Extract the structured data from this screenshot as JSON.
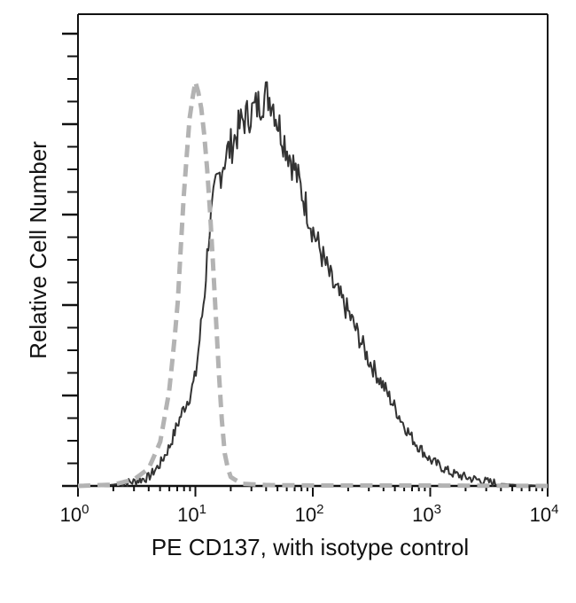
{
  "chart_data": {
    "type": "area",
    "title": "",
    "xlabel": "PE CD137, with isotype control",
    "ylabel": "Relative Cell Number",
    "x_scale": "log",
    "xlim": [
      1,
      10000
    ],
    "ylim": [
      0,
      100
    ],
    "x_ticks": [
      {
        "value": 1,
        "base": "10",
        "exp": "0"
      },
      {
        "value": 10,
        "base": "10",
        "exp": "1"
      },
      {
        "value": 100,
        "base": "10",
        "exp": "2"
      },
      {
        "value": 1000,
        "base": "10",
        "exp": "3"
      },
      {
        "value": 10000,
        "base": "10",
        "exp": "4"
      }
    ],
    "grid": false,
    "series": [
      {
        "style": "solid",
        "color": "#333333",
        "points": [
          [
            1.5,
            0
          ],
          [
            2,
            0.3
          ],
          [
            3,
            1
          ],
          [
            4,
            2
          ],
          [
            5,
            5
          ],
          [
            6,
            9
          ],
          [
            7,
            14
          ],
          [
            8,
            18
          ],
          [
            9,
            21
          ],
          [
            10,
            25
          ],
          [
            11,
            35
          ],
          [
            12,
            45
          ],
          [
            13,
            58
          ],
          [
            15,
            69
          ],
          [
            18,
            76
          ],
          [
            20,
            78
          ],
          [
            25,
            84
          ],
          [
            30,
            86
          ],
          [
            35,
            88
          ],
          [
            40,
            90
          ],
          [
            45,
            89
          ],
          [
            50,
            84
          ],
          [
            60,
            78
          ],
          [
            70,
            73
          ],
          [
            80,
            68
          ],
          [
            100,
            59
          ],
          [
            120,
            53
          ],
          [
            150,
            46
          ],
          [
            200,
            40
          ],
          [
            250,
            34
          ],
          [
            300,
            29
          ],
          [
            400,
            23
          ],
          [
            500,
            18
          ],
          [
            600,
            14
          ],
          [
            700,
            11
          ],
          [
            800,
            9
          ],
          [
            1000,
            6
          ],
          [
            1500,
            3
          ],
          [
            2000,
            2
          ],
          [
            3000,
            1
          ],
          [
            4000,
            0.5
          ],
          [
            5000,
            0.3
          ],
          [
            10000,
            0
          ]
        ]
      },
      {
        "style": "dashed",
        "color": "#b3b3b3",
        "points": [
          [
            1,
            0
          ],
          [
            2,
            0.3
          ],
          [
            3,
            1.5
          ],
          [
            4,
            4
          ],
          [
            5,
            10
          ],
          [
            6,
            22
          ],
          [
            7,
            40
          ],
          [
            8,
            68
          ],
          [
            9,
            86
          ],
          [
            10,
            93
          ],
          [
            11,
            89
          ],
          [
            12,
            80
          ],
          [
            13,
            68
          ],
          [
            14,
            53
          ],
          [
            15,
            38
          ],
          [
            16,
            24
          ],
          [
            17,
            13
          ],
          [
            18,
            6
          ],
          [
            20,
            2
          ],
          [
            25,
            0.5
          ],
          [
            40,
            0.2
          ],
          [
            100,
            0.1
          ],
          [
            1000,
            0.1
          ],
          [
            10000,
            0
          ]
        ]
      }
    ]
  }
}
